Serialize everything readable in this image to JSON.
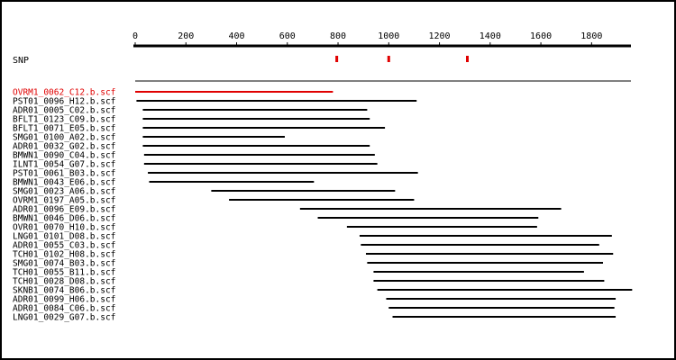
{
  "ruler": {
    "tick_labels": [
      "0",
      "200",
      "400",
      "600",
      "800",
      "1000",
      "1200",
      "1400",
      "1600",
      "1800"
    ],
    "tick_values": [
      0,
      200,
      400,
      600,
      800,
      1000,
      1200,
      1400,
      1600,
      1800
    ],
    "max": 1960
  },
  "snp": {
    "label": "SNP",
    "color": "#e00000",
    "positions": [
      795,
      1000,
      1310
    ]
  },
  "colors": {
    "highlight": "#e00000",
    "normal": "#000000"
  },
  "reads": [
    {
      "name": "OVRM1_0062_C12.b.scf",
      "start": 0,
      "end": 780,
      "highlight": true
    },
    {
      "name": "PST01_0096_H12.b.scf",
      "start": 5,
      "end": 1110,
      "highlight": false
    },
    {
      "name": "ADR01_0005_C02.b.scf",
      "start": 30,
      "end": 915,
      "highlight": false
    },
    {
      "name": "BFLT1_0123_C09.b.scf",
      "start": 30,
      "end": 925,
      "highlight": false
    },
    {
      "name": "BFLT1_0071_E05.b.scf",
      "start": 30,
      "end": 985,
      "highlight": false
    },
    {
      "name": "SMG01_0100_A02.b.scf",
      "start": 30,
      "end": 590,
      "highlight": false
    },
    {
      "name": "ADR01_0032_G02.b.scf",
      "start": 30,
      "end": 925,
      "highlight": false
    },
    {
      "name": "BMWN1_0090_C04.b.scf",
      "start": 35,
      "end": 945,
      "highlight": false
    },
    {
      "name": "ILNT1_0054_G07.b.scf",
      "start": 35,
      "end": 955,
      "highlight": false
    },
    {
      "name": "PST01_0061_B03.b.scf",
      "start": 50,
      "end": 1115,
      "highlight": false
    },
    {
      "name": "BMWN1_0043_E06.b.scf",
      "start": 55,
      "end": 705,
      "highlight": false
    },
    {
      "name": "SMG01_0023_A06.b.scf",
      "start": 300,
      "end": 1025,
      "highlight": false
    },
    {
      "name": "OVRM1_0197_A05.b.scf",
      "start": 370,
      "end": 1100,
      "highlight": false
    },
    {
      "name": "ADR01_0096_E09.b.scf",
      "start": 650,
      "end": 1680,
      "highlight": false
    },
    {
      "name": "BMWN1_0046_D06.b.scf",
      "start": 720,
      "end": 1590,
      "highlight": false
    },
    {
      "name": "OVR01_0070_H10.b.scf",
      "start": 835,
      "end": 1585,
      "highlight": false
    },
    {
      "name": "LNG01_0101_D08.b.scf",
      "start": 885,
      "end": 1880,
      "highlight": false
    },
    {
      "name": "ADR01_0055_C03.b.scf",
      "start": 890,
      "end": 1830,
      "highlight": false
    },
    {
      "name": "TCH01_0102_H08.b.scf",
      "start": 910,
      "end": 1885,
      "highlight": false
    },
    {
      "name": "SMG01_0074_B03.b.scf",
      "start": 915,
      "end": 1845,
      "highlight": false
    },
    {
      "name": "TCH01_0055_B11.b.scf",
      "start": 940,
      "end": 1770,
      "highlight": false
    },
    {
      "name": "TCH01_0028_D08.b.scf",
      "start": 940,
      "end": 1850,
      "highlight": false
    },
    {
      "name": "SKNB1_0074_B06.b.scf",
      "start": 955,
      "end": 1960,
      "highlight": false
    },
    {
      "name": "ADR01_0099_H06.b.scf",
      "start": 990,
      "end": 1895,
      "highlight": false
    },
    {
      "name": "ADR01_0084_C06.b.scf",
      "start": 1000,
      "end": 1890,
      "highlight": false
    },
    {
      "name": "LNG01_0029_G07.b.scf",
      "start": 1015,
      "end": 1895,
      "highlight": false
    }
  ]
}
